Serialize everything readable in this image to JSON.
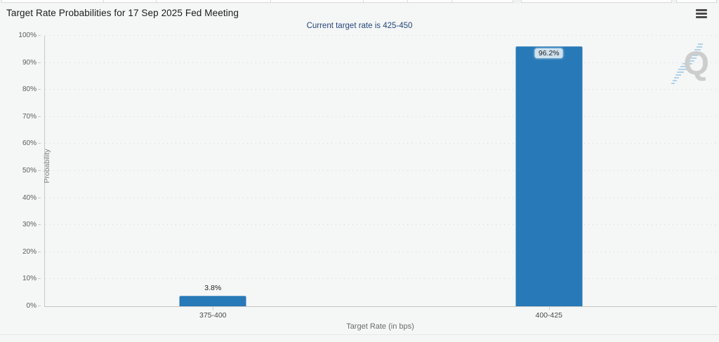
{
  "header": {
    "title": "Target Rate Probabilities for 17 Sep 2025 Fed Meeting"
  },
  "menu": {
    "icon": "hamburger-icon"
  },
  "watermark": {
    "letter": "Q"
  },
  "chart_data": {
    "type": "bar",
    "title": "Target Rate Probabilities for 17 Sep 2025 Fed Meeting",
    "subtitle": "Current target rate is 425-450",
    "categories": [
      "375-400",
      "400-425"
    ],
    "values": [
      3.8,
      96.2
    ],
    "value_labels": [
      "3.8%",
      "96.2%"
    ],
    "label_positions": [
      "above",
      "inside"
    ],
    "xlabel": "Target Rate (in bps)",
    "ylabel": "Probability",
    "ylim": [
      0,
      100
    ],
    "yticks": [
      0,
      10,
      20,
      30,
      40,
      50,
      60,
      70,
      80,
      90,
      100
    ],
    "ytick_labels": [
      "0%",
      "10%",
      "20%",
      "30%",
      "40%",
      "50%",
      "60%",
      "70%",
      "80%",
      "90%",
      "100%"
    ],
    "grid": "horizontal-dotted",
    "legend_position": "none",
    "bar_color": "#2879B7",
    "grid_color": "#d7d7d7",
    "subtitle_color": "#25477b"
  }
}
